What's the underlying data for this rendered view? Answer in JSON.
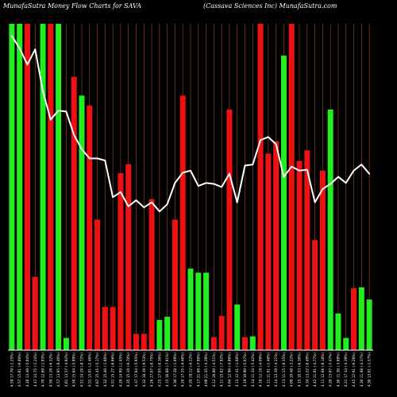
{
  "chart_data": {
    "type": "bar",
    "title_left": "MunafaSutra  Money Flow  Charts for SAVA",
    "title_right": "(Cassava  Sciences Inc) MunafaSutra.com",
    "categories": [
      "Wed 17 Feb 2021",
      "Tue 16 Feb 2021",
      "Fri 12 Feb 2021",
      "Thu 11 Feb 2021",
      "Wed 10 Feb 2021",
      "Tue 09 Feb 2021",
      "Mon 08 Feb 2021",
      "Fri 05 Feb 2021",
      "Thu 04 Feb 2021",
      "Wed 03 Feb 2021",
      "Tue 02 Feb 2021",
      "Mon 01 Feb 2021",
      "Fri 29 Jan 2021",
      "Thu 28 Jan 2021",
      "Wed 27 Jan 2021",
      "Tue 26 Jan 2021",
      "Mon 25 Jan 2021",
      "Fri 22 Jan 2021",
      "Thu 21 Jan 2021",
      "Wed 20 Jan 2021",
      "Tue 19 Jan 2021",
      "Fri 15 Jan 2021",
      "Thu 14 Jan 2021",
      "Wed 13 Jan 2021",
      "Tue 12 Jan 2021",
      "Mon 11 Jan 2021",
      "Fri 08 Jan 2021",
      "Thu 07 Jan 2021",
      "Wed 06 Jan 2021",
      "Tue 05 Jan 2021",
      "Mon 04 Jan 2021",
      "Thu 31 Dec 2020",
      "Wed 30 Dec 2020",
      "Tue 29 Dec 2020",
      "Mon 28 Dec 2020",
      "Thu 24 Dec 2020",
      "Wed 23 Dec 2020",
      "Tue 22 Dec 2020",
      "Mon 21 Dec 2020",
      "Fri 18 Dec 2020",
      "Thu 17 Dec 2020",
      "Wed 16 Dec 2020",
      "Tue 15 Dec 2020",
      "Mon 14 Dec 2020",
      "Fri 11 Dec 2020",
      "Thu 10 Dec 2020",
      "Wed 09 Dec 2020"
    ],
    "tick_labels": [
      "4.59 17.70 (-1.25%)",
      "4.57 15.81 (-0.89%)",
      "4.28 13.40 (-5.04%)",
      "4.47 14.75 (-1.24%)",
      "4.70 12.69 (-1.83%)",
      "4.50 13.28 (-6.32%)",
      "4.57 13.95 (-8.40%)",
      "4.61 13.57 (-4.92%)",
      "4.50 15.64 (-5.99%)",
      "4.51 14.10 (-8.72%)",
      "4.51 15.01 (-2.46%)",
      "4.67 15.45 (-5.17%)",
      "4.32 15.40 (-1.60%)",
      "4.51 15.27 (-6.66%)",
      "4.29 14.99 (-1.45%)",
      "4.35 15.10 (-0.78%)",
      "4.37 17.64 (-5.95%)",
      "4.32 18.39 (-9.53%)",
      "4.26 17.07 (-0.75%)",
      "4.25 17.05 (-0.36%)",
      "4.15 16.88 (-7.91%)",
      "4.30 17.28 (-1.69%)",
      "4.10 17.35 (-4.46%)",
      "4.20 19.12 (-4.22%)",
      "4.17 21.69 (-7.99%)",
      "4.09 21.45 (-4.39%)",
      "4.12 16.80 (-4.51%)",
      "4.11 15.82 (-7.92%)",
      "4.04 12.90 (-4.86%)",
      "4.13 12.41 (-1.68%)",
      "4.19 10.90 (-5.07%)",
      "4.14 11.34 (-5.42%)",
      "4.19 12.19 (-4.09%)",
      "4.11 11.91 (-1.48%)",
      "4.14 13.39 (-4.31%)",
      "4.13 11.15 (-8.35%)",
      "4.09 10.48 (-3.22%)",
      "4.15 10.53 (-6.36%)",
      "4.34 13.22 (-8.49%)",
      "4.42 11.91 (-4.77%)",
      "4.11 12.66 (-8.18%)",
      "4.20 13.87 (-5.47%)",
      "4.30 11.30 (-3.69%)",
      "4.21 17.34 (-4.39%)",
      "4.45 12.91 (-0.26%)",
      "4.30 11.98 (-4.37%)",
      "4.30 13.01 (-1.57%)"
    ],
    "colors": [
      "green",
      "green",
      "red",
      "red",
      "green",
      "red",
      "green",
      "green",
      "red",
      "green",
      "red",
      "red",
      "red",
      "red",
      "red",
      "red",
      "red",
      "red",
      "red",
      "green",
      "green",
      "red",
      "red",
      "green",
      "green",
      "green",
      "red",
      "red",
      "red",
      "green",
      "red",
      "green",
      "red",
      "red",
      "red",
      "green",
      "red",
      "red",
      "red",
      "red",
      "red",
      "green",
      "green",
      "green",
      "red",
      "green",
      "green"
    ],
    "volumes": [
      400,
      400,
      400,
      90,
      400,
      400,
      400,
      15,
      335,
      312,
      300,
      160,
      53,
      53,
      217,
      228,
      20,
      20,
      185,
      37,
      41,
      160,
      312,
      100,
      95,
      95,
      16,
      42,
      295,
      56,
      16,
      17,
      400,
      241,
      256,
      361,
      400,
      232,
      245,
      135,
      220,
      295,
      45,
      15,
      76,
      77,
      62
    ],
    "ylim_volume": [
      0,
      400
    ],
    "line": [
      408,
      396,
      380,
      395,
      354,
      326,
      335,
      334,
      311,
      297,
      288,
      288,
      286,
      250,
      255,
      241,
      247,
      240,
      245,
      236,
      243,
      264,
      274,
      276,
      261,
      264,
      263,
      260,
      273,
      245,
      281,
      282,
      306,
      309,
      302,
      270,
      280,
      276,
      277,
      245,
      258,
      263,
      270,
      264,
      276,
      282,
      273
    ],
    "ylim_line": [
      100,
      420
    ],
    "grid": "vertical",
    "colors_hex": {
      "green": "#22ee22",
      "red": "#ee1111",
      "line": "#ffffff",
      "grid": "#a0522d",
      "axis": "#ffffff",
      "text": "#ffffff",
      "background": "#000000"
    }
  }
}
